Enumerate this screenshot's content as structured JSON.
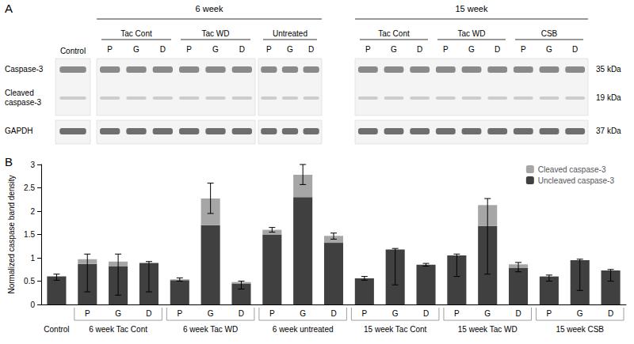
{
  "panel_a": {
    "label": "A",
    "control": "Control",
    "periods": [
      {
        "label": "6 week",
        "groups": [
          "Tac Cont",
          "Tac WD",
          "Untreated"
        ]
      },
      {
        "label": "15 week",
        "groups": [
          "Tac Cont",
          "Tac WD",
          "CSB"
        ]
      }
    ],
    "lanes": [
      "P",
      "G",
      "D"
    ],
    "rows": [
      {
        "label": "Caspase-3",
        "size": "35 kDa"
      },
      {
        "label": "Cleaved caspase-3",
        "size": "19 kDa"
      },
      {
        "label": "GAPDH",
        "size": "37 kDa"
      }
    ]
  },
  "panel_b_label": "B",
  "chart_data": {
    "type": "bar",
    "stacked": true,
    "grid": false,
    "legend": "top-right",
    "ylabel": "Normalized caspase band density",
    "ylim": [
      0,
      3
    ],
    "yticks": [
      0,
      0.5,
      1,
      1.5,
      2,
      2.5,
      3
    ],
    "categories": [
      null,
      "P",
      "G",
      "D",
      "P",
      "G",
      "D",
      "P",
      "G",
      "D",
      "P",
      "G",
      "D",
      "P",
      "G",
      "D",
      "P",
      "G",
      "D"
    ],
    "groups": [
      {
        "label": "Control",
        "size": 1
      },
      {
        "label": "6 week Tac Cont",
        "size": 3
      },
      {
        "label": "6 week Tac WD",
        "size": 3
      },
      {
        "label": "6 week untreated",
        "size": 3
      },
      {
        "label": "15 week Tac Cont",
        "size": 3
      },
      {
        "label": "15 week Tac WD",
        "size": 3
      },
      {
        "label": "15 week CSB",
        "size": 3
      }
    ],
    "series": [
      {
        "name": "Uncleaved caspase-3",
        "color": "#404040",
        "values": [
          0.6,
          0.87,
          0.82,
          0.88,
          0.52,
          1.7,
          0.45,
          1.5,
          2.3,
          1.32,
          0.56,
          1.18,
          0.85,
          1.05,
          1.68,
          0.78,
          0.6,
          0.95,
          0.73
        ]
      },
      {
        "name": "Cleaved caspase-3",
        "color": "#a6a6a6",
        "values": [
          0,
          0.1,
          0.1,
          0.02,
          0.02,
          0.57,
          0.03,
          0.1,
          0.48,
          0.15,
          0,
          0,
          0,
          0,
          0.45,
          0.08,
          0,
          0,
          0
        ]
      }
    ],
    "error_bars": [
      [
        0.52,
        0.65
      ],
      [
        0.27,
        1.08
      ],
      [
        0.2,
        1.08
      ],
      [
        0.27,
        0.92
      ],
      [
        0.5,
        0.57
      ],
      [
        1.95,
        2.6
      ],
      [
        0.33,
        0.5
      ],
      [
        1.55,
        1.65
      ],
      [
        2.57,
        3.0
      ],
      [
        1.4,
        1.53
      ],
      [
        0.52,
        0.6
      ],
      [
        0.42,
        1.2
      ],
      [
        0.82,
        0.88
      ],
      [
        0.6,
        1.08
      ],
      [
        0.65,
        2.27
      ],
      [
        0.7,
        0.9
      ],
      [
        0.5,
        0.63
      ],
      [
        0.3,
        0.97
      ],
      [
        0.5,
        0.75
      ]
    ]
  }
}
